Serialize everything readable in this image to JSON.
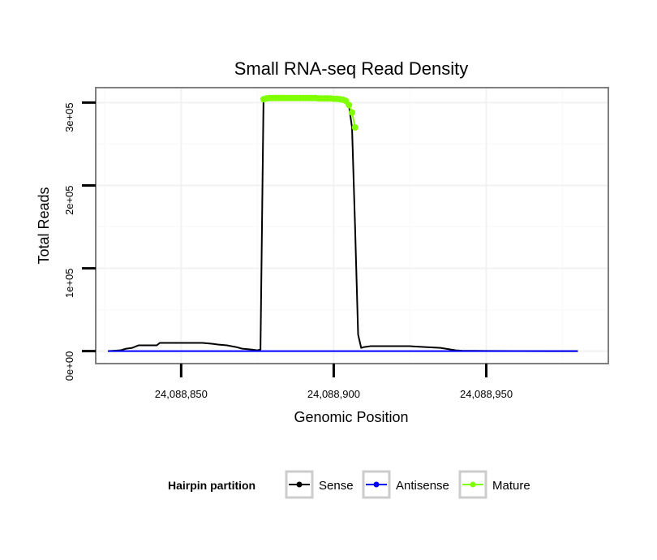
{
  "chart_data": {
    "type": "line",
    "title": "Small RNA-seq Read Density",
    "xlabel": "Genomic Position",
    "ylabel": "Total Reads",
    "xlim": [
      24088822,
      24088990
    ],
    "ylim": [
      -15000,
      318000
    ],
    "x_ticks": [
      24088850,
      24088900,
      24088950
    ],
    "x_tick_labels": [
      "24,088,850",
      "24,088,900",
      "24,088,950"
    ],
    "y_ticks": [
      0,
      100000,
      200000,
      300000
    ],
    "y_tick_labels": [
      "0e+00",
      "1e+05",
      "2e+05",
      "3e+05"
    ],
    "grid": true,
    "legend": {
      "title": "Hairpin partition",
      "position": "bottom",
      "entries": [
        "Sense",
        "Antisense",
        "Mature"
      ]
    },
    "colors": {
      "Sense": "#000000",
      "Antisense": "#0000ff",
      "Mature": "#7fff00",
      "panel_border": "#7f7f7f",
      "grid_major": "#f2f2f2",
      "grid_minor": "#fafafa",
      "legend_key_border": "#cccccc"
    },
    "series": [
      {
        "name": "Sense",
        "x": [
          24088826,
          24088830,
          24088832,
          24088834,
          24088836,
          24088838,
          24088842,
          24088843,
          24088850,
          24088855,
          24088857,
          24088860,
          24088862,
          24088865,
          24088868,
          24088870,
          24088873,
          24088875,
          24088876,
          24088877,
          24088880,
          24088890,
          24088900,
          24088903,
          24088905,
          24088906,
          24088907,
          24088908,
          24088909,
          24088910,
          24088912,
          24088920,
          24088925,
          24088930,
          24088935,
          24088940,
          24088942,
          24088950,
          24088960,
          24088970,
          24088980
        ],
        "y": [
          0,
          1000,
          3000,
          4000,
          7000,
          7000,
          7000,
          10000,
          10000,
          10000,
          10000,
          9000,
          8000,
          7000,
          5000,
          3000,
          2000,
          1000,
          2000,
          303000,
          305000,
          305000,
          304000,
          302000,
          296000,
          270000,
          150000,
          20000,
          4000,
          5000,
          6000,
          6000,
          6000,
          5000,
          4000,
          1000,
          500,
          300,
          200,
          100,
          100
        ]
      },
      {
        "name": "Antisense",
        "x": [
          24088826,
          24088980
        ],
        "y": [
          0,
          0
        ]
      },
      {
        "name": "Mature",
        "x": [
          24088877,
          24088878,
          24088879,
          24088880,
          24088881,
          24088882,
          24088883,
          24088884,
          24088885,
          24088886,
          24088887,
          24088888,
          24088889,
          24088890,
          24088891,
          24088892,
          24088893,
          24088894,
          24088895,
          24088896,
          24088897,
          24088898,
          24088899,
          24088900,
          24088901,
          24088902,
          24088903,
          24088904,
          24088905,
          24088906,
          24088907
        ],
        "y": [
          304000,
          305000,
          305500,
          305500,
          305500,
          305500,
          305500,
          305500,
          305500,
          305500,
          305500,
          305500,
          305500,
          305500,
          305500,
          305500,
          305500,
          305500,
          305000,
          305000,
          305000,
          305000,
          305000,
          304500,
          304500,
          304000,
          303500,
          302000,
          297000,
          288000,
          270000
        ]
      }
    ]
  }
}
